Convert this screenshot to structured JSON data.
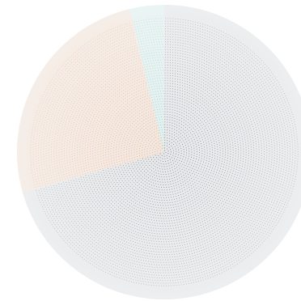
{
  "chart_data": {
    "type": "pie",
    "title": "",
    "legend": "none",
    "start_angle_deg": 0,
    "direction": "clockwise",
    "slices": [
      {
        "name": "",
        "percent": 70.6,
        "color": "#e6e8ea",
        "texture": "#7b8086"
      },
      {
        "name": "",
        "percent": 25.6,
        "color": "#f2e7df",
        "texture": "#e7a57f"
      },
      {
        "name": "",
        "percent": 3.8,
        "color": "#e3f0ef",
        "texture": "#8cc8bf"
      }
    ]
  }
}
